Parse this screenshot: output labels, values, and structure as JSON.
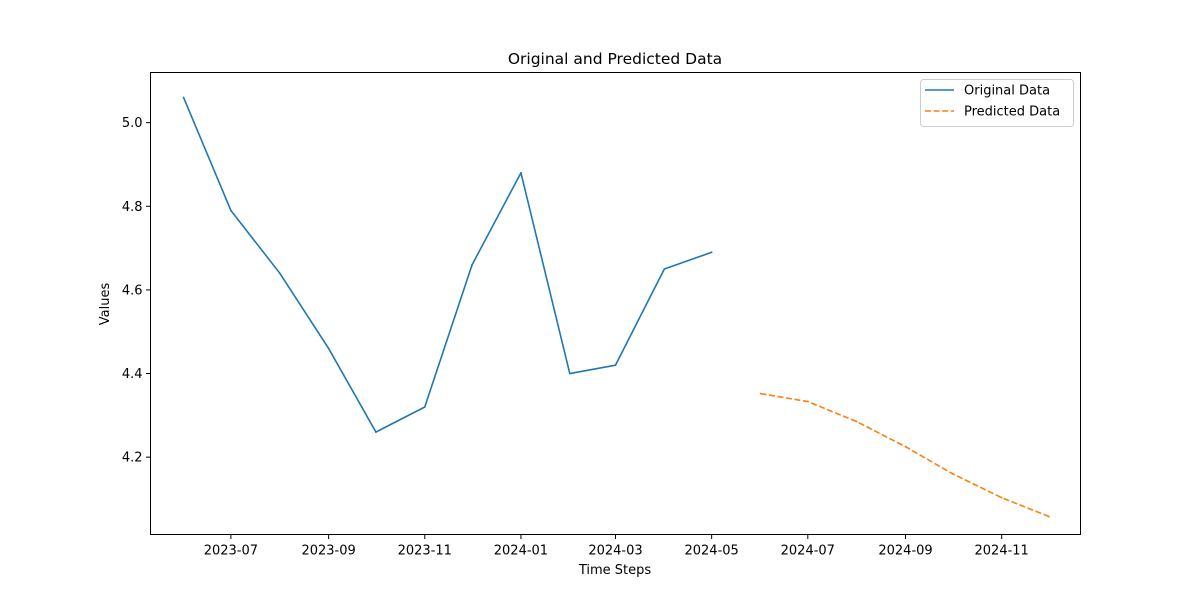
{
  "chart_data": {
    "type": "line",
    "title": "Original and Predicted Data",
    "xlabel": "Time Steps",
    "ylabel": "Values",
    "x_ticks": [
      "2023-07",
      "2023-09",
      "2023-11",
      "2024-01",
      "2024-03",
      "2024-05",
      "2024-07",
      "2024-09",
      "2024-11"
    ],
    "y_ticks": [
      "4.2",
      "4.4",
      "4.6",
      "4.8",
      "5.0"
    ],
    "ylim": [
      4.015,
      5.12
    ],
    "xlim": [
      "2023-05-11",
      "2024-12-21"
    ],
    "grid": false,
    "legend_position": "upper right",
    "series": [
      {
        "name": "Original Data",
        "color": "#1f77b4",
        "style": "solid",
        "points": [
          {
            "x": "2023-06-01",
            "y": 5.06
          },
          {
            "x": "2023-07-01",
            "y": 4.79
          },
          {
            "x": "2023-08-01",
            "y": 4.64
          },
          {
            "x": "2023-09-01",
            "y": 4.46
          },
          {
            "x": "2023-10-01",
            "y": 4.26
          },
          {
            "x": "2023-11-01",
            "y": 4.32
          },
          {
            "x": "2023-12-01",
            "y": 4.66
          },
          {
            "x": "2024-01-01",
            "y": 4.88
          },
          {
            "x": "2024-02-01",
            "y": 4.4
          },
          {
            "x": "2024-03-01",
            "y": 4.42
          },
          {
            "x": "2024-04-01",
            "y": 4.65
          },
          {
            "x": "2024-05-01",
            "y": 4.69
          }
        ]
      },
      {
        "name": "Predicted Data",
        "color": "#ff7f0e",
        "style": "dashed",
        "points": [
          {
            "x": "2024-06-01",
            "y": 4.352
          },
          {
            "x": "2024-07-01",
            "y": 4.333
          },
          {
            "x": "2024-08-01",
            "y": 4.285
          },
          {
            "x": "2024-09-01",
            "y": 4.225
          },
          {
            "x": "2024-10-01",
            "y": 4.16
          },
          {
            "x": "2024-11-01",
            "y": 4.103
          },
          {
            "x": "2024-12-01",
            "y": 4.058
          }
        ]
      }
    ]
  }
}
